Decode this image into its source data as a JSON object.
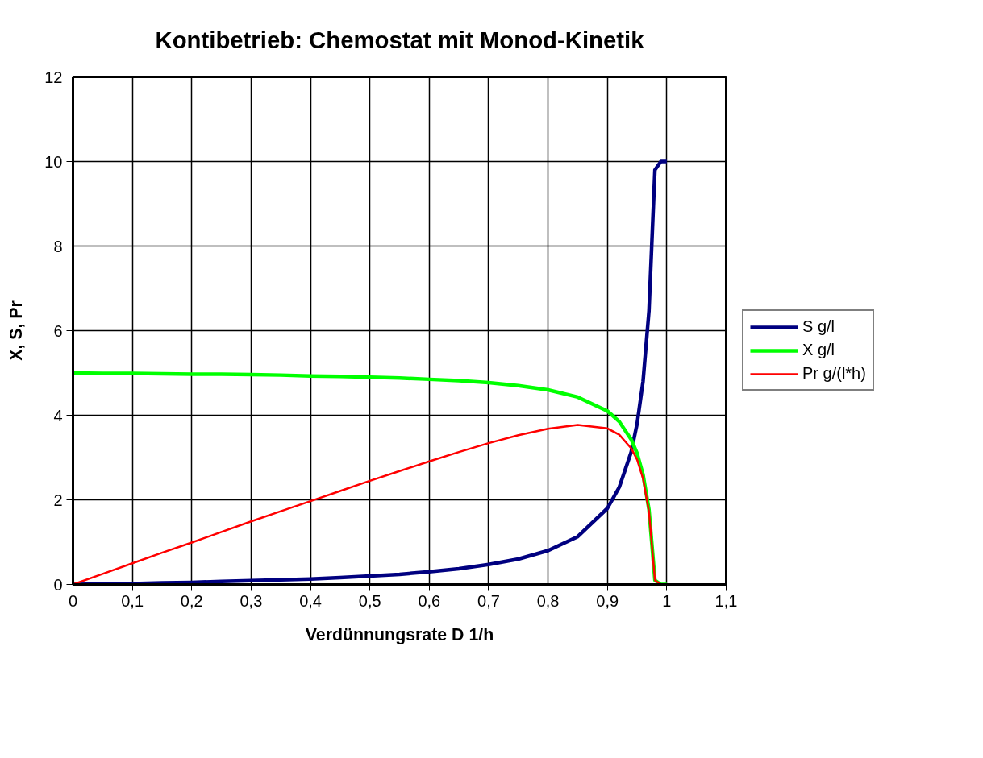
{
  "chart_data": {
    "type": "line",
    "title": "Kontibetrieb: Chemostat mit Monod-Kinetik",
    "xlabel": "Verdünnungsrate D 1/h",
    "ylabel": "X, S, Pr",
    "x": [
      0,
      0.05,
      0.1,
      0.15,
      0.2,
      0.25,
      0.3,
      0.35,
      0.4,
      0.45,
      0.5,
      0.55,
      0.6,
      0.65,
      0.7,
      0.75,
      0.8,
      0.85,
      0.9,
      0.92,
      0.94,
      0.95,
      0.96,
      0.97,
      0.98,
      0.99,
      1.0
    ],
    "series": [
      {
        "name": "S g/l",
        "color": "#000080",
        "values": [
          0,
          0.01,
          0.02,
          0.04,
          0.05,
          0.07,
          0.09,
          0.11,
          0.13,
          0.16,
          0.2,
          0.24,
          0.3,
          0.37,
          0.47,
          0.6,
          0.8,
          1.13,
          1.8,
          2.3,
          3.13,
          3.8,
          4.8,
          6.47,
          9.8,
          10,
          10
        ]
      },
      {
        "name": "X g/l",
        "color": "#00ff00",
        "values": [
          5,
          4.99,
          4.99,
          4.98,
          4.97,
          4.97,
          4.96,
          4.95,
          4.93,
          4.92,
          4.9,
          4.88,
          4.85,
          4.82,
          4.77,
          4.7,
          4.6,
          4.43,
          4.1,
          3.85,
          3.43,
          3.1,
          2.6,
          1.77,
          0.1,
          0,
          0
        ]
      },
      {
        "name": "Pr g/(l*h)",
        "color": "#ff0000",
        "values": [
          0,
          0.25,
          0.5,
          0.75,
          0.99,
          1.24,
          1.49,
          1.73,
          1.97,
          2.21,
          2.45,
          2.68,
          2.91,
          3.13,
          3.34,
          3.53,
          3.68,
          3.77,
          3.69,
          3.54,
          3.22,
          2.95,
          2.5,
          1.72,
          0.1,
          0,
          0
        ]
      }
    ],
    "xlim": [
      0,
      1.1
    ],
    "ylim": [
      0,
      12
    ],
    "xticks": [
      0,
      {
        "value": 0.1,
        "label": "0,1"
      },
      {
        "value": 0.2,
        "label": "0,2"
      },
      {
        "value": 0.3,
        "label": "0,3"
      },
      {
        "value": 0.4,
        "label": "0,4"
      },
      {
        "value": 0.5,
        "label": "0,5"
      },
      {
        "value": 0.6,
        "label": "0,6"
      },
      {
        "value": 0.7,
        "label": "0,7"
      },
      {
        "value": 0.8,
        "label": "0,8"
      },
      {
        "value": 0.9,
        "label": "0,9"
      },
      1,
      {
        "value": 1.1,
        "label": "1,1"
      }
    ],
    "yticks": [
      0,
      2,
      4,
      6,
      8,
      10,
      12
    ],
    "grid": true,
    "legend": "right",
    "marker": "none",
    "line_style": "solid"
  }
}
